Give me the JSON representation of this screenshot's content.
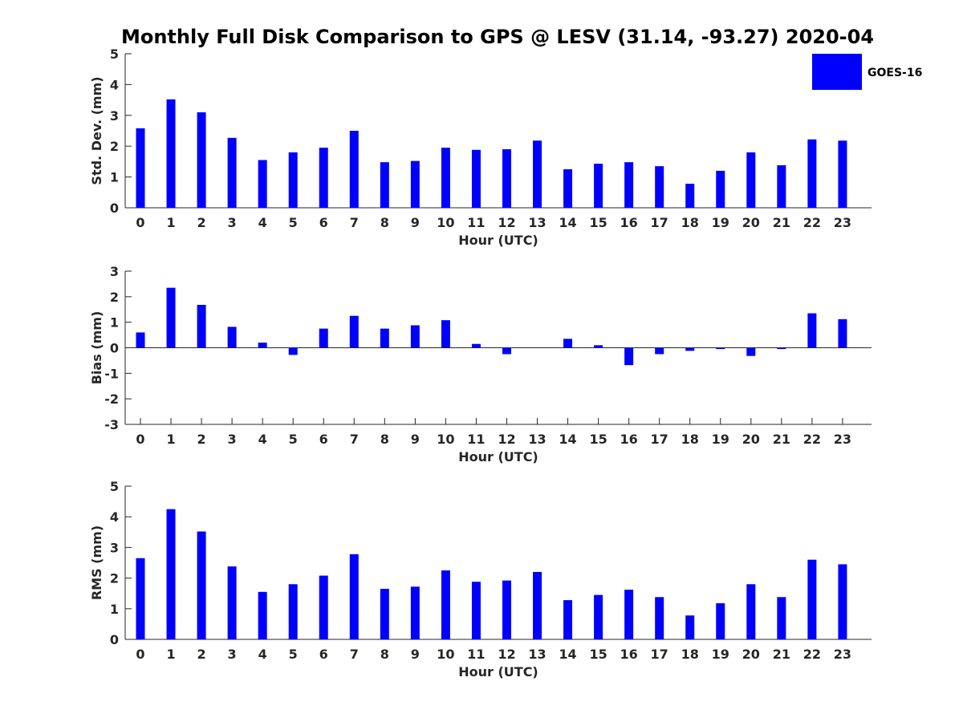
{
  "title": "Monthly Full Disk Comparison to GPS @ LESV (31.14, -93.27) 2020-04",
  "colors": {
    "bar": "#0000ff",
    "axis": "#262626"
  },
  "legend": {
    "label": "GOES-16",
    "placement": "top-right"
  },
  "chart_data": [
    {
      "type": "bar",
      "categories": [
        "0",
        "1",
        "2",
        "3",
        "4",
        "5",
        "6",
        "7",
        "8",
        "9",
        "10",
        "11",
        "12",
        "13",
        "14",
        "15",
        "16",
        "17",
        "18",
        "19",
        "20",
        "21",
        "22",
        "23"
      ],
      "series": [
        {
          "name": "GOES-16",
          "values": [
            2.58,
            3.52,
            3.1,
            2.27,
            1.55,
            1.8,
            1.95,
            2.5,
            1.48,
            1.52,
            1.95,
            1.88,
            1.9,
            2.18,
            1.25,
            1.43,
            1.48,
            1.35,
            0.78,
            1.2,
            1.8,
            1.38,
            2.22,
            2.18
          ]
        }
      ],
      "xlabel": "Hour (UTC)",
      "ylabel": "Std. Dev. (mm)",
      "ylim": [
        0,
        5
      ],
      "yticks": [
        0,
        1,
        2,
        3,
        4,
        5
      ],
      "grid": false
    },
    {
      "type": "bar",
      "categories": [
        "0",
        "1",
        "2",
        "3",
        "4",
        "5",
        "6",
        "7",
        "8",
        "9",
        "10",
        "11",
        "12",
        "13",
        "14",
        "15",
        "16",
        "17",
        "18",
        "19",
        "20",
        "21",
        "22",
        "23"
      ],
      "series": [
        {
          "name": "GOES-16",
          "values": [
            0.6,
            2.35,
            1.68,
            0.82,
            0.2,
            -0.28,
            0.75,
            1.25,
            0.75,
            0.88,
            1.08,
            0.15,
            -0.25,
            0.0,
            0.35,
            0.1,
            -0.68,
            -0.25,
            -0.12,
            -0.05,
            -0.32,
            -0.05,
            1.35,
            1.12
          ]
        }
      ],
      "xlabel": "Hour (UTC)",
      "ylabel": "Bias (mm)",
      "ylim": [
        -3,
        3
      ],
      "yticks": [
        -3,
        -2,
        -1,
        0,
        1,
        2,
        3
      ],
      "grid": false,
      "zero_line": true
    },
    {
      "type": "bar",
      "categories": [
        "0",
        "1",
        "2",
        "3",
        "4",
        "5",
        "6",
        "7",
        "8",
        "9",
        "10",
        "11",
        "12",
        "13",
        "14",
        "15",
        "16",
        "17",
        "18",
        "19",
        "20",
        "21",
        "22",
        "23"
      ],
      "series": [
        {
          "name": "GOES-16",
          "values": [
            2.65,
            4.25,
            3.52,
            2.38,
            1.55,
            1.8,
            2.08,
            2.78,
            1.65,
            1.72,
            2.25,
            1.88,
            1.92,
            2.2,
            1.28,
            1.45,
            1.62,
            1.38,
            0.78,
            1.18,
            1.8,
            1.38,
            2.6,
            2.45
          ]
        }
      ],
      "xlabel": "Hour (UTC)",
      "ylabel": "RMS (mm)",
      "ylim": [
        0,
        5
      ],
      "yticks": [
        0,
        1,
        2,
        3,
        4,
        5
      ],
      "grid": false
    }
  ]
}
